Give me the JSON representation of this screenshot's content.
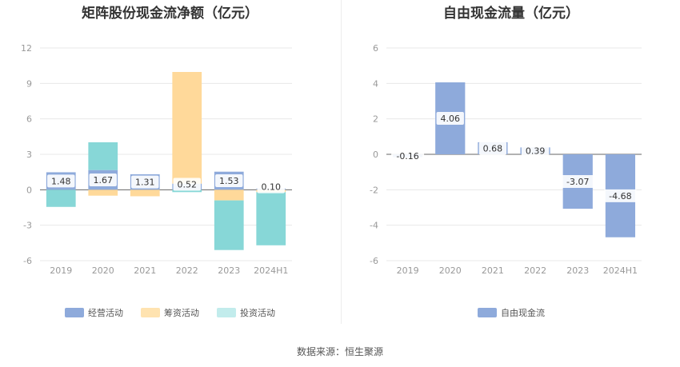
{
  "source": "数据来源：恒生聚源",
  "colors": {
    "operating": "#8eaadb",
    "financing": "#ffd99a",
    "investing": "#87d7d7",
    "free_cash_flow": "#8eaadb",
    "label_bg": "#ffffff"
  },
  "chart_data": [
    {
      "type": "bar",
      "stacked": true,
      "title": "矩阵股份现金流净额（亿元）",
      "categories": [
        "2019",
        "2020",
        "2021",
        "2022",
        "2023",
        "2024H1"
      ],
      "ylim": [
        -6,
        12
      ],
      "yticks": [
        "12",
        "9",
        "6",
        "3",
        "0",
        "-3",
        "-6"
      ],
      "ytick_values": [
        12,
        9,
        6,
        3,
        0,
        -3,
        -6
      ],
      "grid": true,
      "legend": "bottom-center",
      "series": [
        {
          "name": "经营活动",
          "key": "operating",
          "values": [
            1.48,
            1.67,
            1.31,
            0.52,
            1.53,
            0.1
          ],
          "labels": [
            "1.48",
            "1.67",
            "1.31",
            "0.52",
            "1.53",
            "0.10"
          ]
        },
        {
          "name": "筹资活动",
          "key": "financing",
          "values": [
            0.0,
            -0.5,
            -0.55,
            9.45,
            -0.9,
            -0.2
          ]
        },
        {
          "name": "投资活动",
          "key": "investing",
          "values": [
            -1.45,
            2.35,
            0.0,
            -0.2,
            -4.2,
            -4.5
          ]
        }
      ]
    },
    {
      "type": "bar",
      "title": "自由现金流量（亿元）",
      "categories": [
        "2019",
        "2020",
        "2021",
        "2022",
        "2023",
        "2024H1"
      ],
      "ylim": [
        -6,
        6
      ],
      "yticks": [
        "6",
        "4",
        "2",
        "0",
        "-2",
        "-4",
        "-6"
      ],
      "ytick_values": [
        6,
        4,
        2,
        0,
        -2,
        -4,
        -6
      ],
      "grid": true,
      "legend": "bottom-center",
      "series": [
        {
          "name": "自由现金流",
          "key": "free_cash_flow",
          "values": [
            -0.16,
            4.06,
            0.68,
            0.39,
            -3.07,
            -4.68
          ],
          "labels": [
            "-0.16",
            "4.06",
            "0.68",
            "0.39",
            "-3.07",
            "-4.68"
          ]
        }
      ]
    }
  ]
}
